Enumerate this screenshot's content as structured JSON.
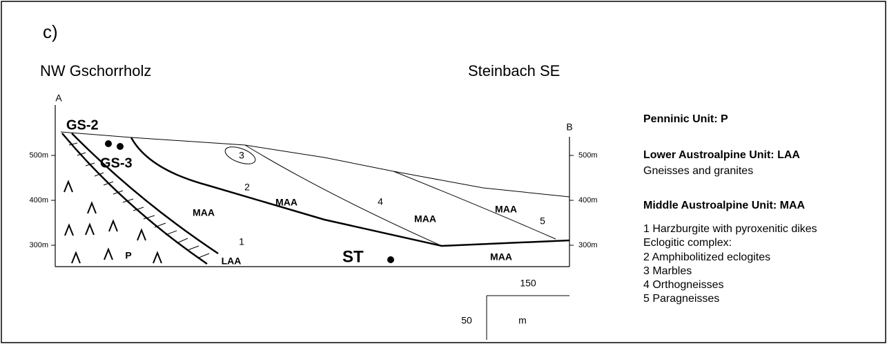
{
  "panel_label": "c)",
  "profile": {
    "left_end": "NW  Gschorrholz",
    "right_end": "Steinbach  SE",
    "point_a": "A",
    "point_b": "B"
  },
  "section": {
    "elevations_left": [
      "500m",
      "400m",
      "300m"
    ],
    "elevations_right": [
      "500m",
      "400m",
      "300m"
    ],
    "samples": [
      "GS-2",
      "GS-3",
      "ST"
    ],
    "unit_labels": [
      "MAA",
      "MAA",
      "MAA",
      "MAA",
      "MAA",
      "P",
      "LAA"
    ],
    "lithology_numbers": [
      "1",
      "2",
      "3",
      "4",
      "5"
    ]
  },
  "scale": {
    "horizontal": "150",
    "vertical": "50",
    "unit": "m"
  },
  "legend": {
    "penninic": "Penninic Unit: P",
    "lower_austroalpine": "Lower Austroalpine Unit: LAA",
    "lower_austroalpine_desc": "Gneisses and granites",
    "middle_austroalpine": "Middle Austroalpine Unit: MAA",
    "items": [
      "1 Harzburgite with pyroxenitic dikes",
      "Eclogitic complex:",
      "2 Amphibolitized eclogites",
      "3 Marbles",
      "4 Orthogneisses",
      "5 Paragneisses"
    ]
  }
}
